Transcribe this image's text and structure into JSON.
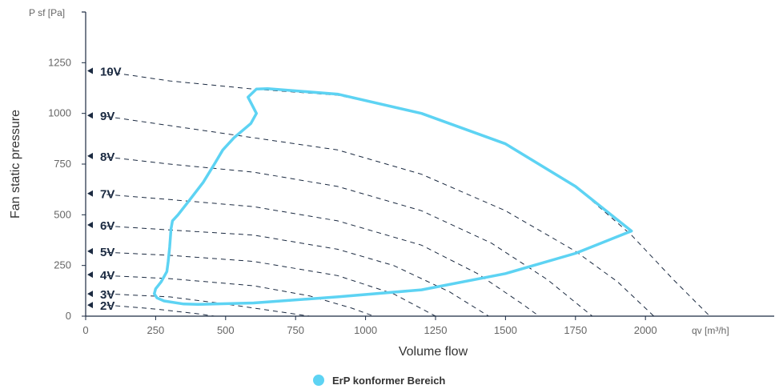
{
  "chart_data": {
    "type": "line",
    "xlabel": "Volume flow",
    "ylabel": "Fan static pressure",
    "x_unit_label": "qv [m³/h]",
    "y_unit_label": "P sf [Pa]",
    "xlim": [
      0,
      2460
    ],
    "ylim": [
      0,
      1500
    ],
    "x_ticks": [
      0,
      250,
      500,
      750,
      1000,
      1250,
      1500,
      1750,
      2000
    ],
    "y_ticks": [
      0,
      250,
      500,
      750,
      1000,
      1250
    ],
    "x_tick_labels": [
      "0",
      "250",
      "500",
      "750",
      "1000",
      "1250",
      "1500",
      "1750",
      "2000"
    ],
    "y_tick_labels": [
      "0",
      "250",
      "500",
      "750",
      "1000",
      "1250"
    ],
    "voltage_curves": [
      {
        "label": "10V",
        "label_y": 1210,
        "points": [
          [
            75,
            1205
          ],
          [
            300,
            1160
          ],
          [
            600,
            1120
          ],
          [
            900,
            1090
          ],
          [
            1200,
            1000
          ],
          [
            1500,
            850
          ],
          [
            1750,
            640
          ],
          [
            1950,
            400
          ],
          [
            2100,
            180
          ],
          [
            2230,
            0
          ]
        ]
      },
      {
        "label": "9V",
        "label_y": 990,
        "points": [
          [
            75,
            985
          ],
          [
            300,
            940
          ],
          [
            600,
            880
          ],
          [
            900,
            820
          ],
          [
            1200,
            700
          ],
          [
            1500,
            520
          ],
          [
            1750,
            320
          ],
          [
            1900,
            170
          ],
          [
            2030,
            0
          ]
        ]
      },
      {
        "label": "8V",
        "label_y": 790,
        "points": [
          [
            75,
            785
          ],
          [
            300,
            750
          ],
          [
            600,
            710
          ],
          [
            900,
            640
          ],
          [
            1200,
            520
          ],
          [
            1450,
            360
          ],
          [
            1650,
            180
          ],
          [
            1810,
            0
          ]
        ]
      },
      {
        "label": "7V",
        "label_y": 605,
        "points": [
          [
            75,
            600
          ],
          [
            300,
            575
          ],
          [
            600,
            540
          ],
          [
            900,
            470
          ],
          [
            1200,
            350
          ],
          [
            1400,
            210
          ],
          [
            1560,
            60
          ],
          [
            1620,
            0
          ]
        ]
      },
      {
        "label": "6V",
        "label_y": 450,
        "points": [
          [
            75,
            445
          ],
          [
            300,
            425
          ],
          [
            600,
            400
          ],
          [
            900,
            330
          ],
          [
            1100,
            250
          ],
          [
            1300,
            120
          ],
          [
            1440,
            0
          ]
        ]
      },
      {
        "label": "5V",
        "label_y": 320,
        "points": [
          [
            75,
            315
          ],
          [
            300,
            300
          ],
          [
            600,
            270
          ],
          [
            900,
            200
          ],
          [
            1100,
            110
          ],
          [
            1250,
            0
          ]
        ]
      },
      {
        "label": "4V",
        "label_y": 205,
        "points": [
          [
            75,
            200
          ],
          [
            300,
            185
          ],
          [
            600,
            150
          ],
          [
            800,
            100
          ],
          [
            950,
            40
          ],
          [
            1030,
            0
          ]
        ]
      },
      {
        "label": "3V",
        "label_y": 110,
        "points": [
          [
            75,
            110
          ],
          [
            300,
            95
          ],
          [
            500,
            60
          ],
          [
            700,
            20
          ],
          [
            800,
            0
          ]
        ]
      },
      {
        "label": "2V",
        "label_y": 55,
        "points": [
          [
            75,
            55
          ],
          [
            250,
            35
          ],
          [
            400,
            12
          ],
          [
            460,
            0
          ]
        ]
      }
    ],
    "series": [
      {
        "name": "ErP konformer Bereich",
        "color": "#5dd3f3",
        "points": [
          [
            610,
            1120
          ],
          [
            650,
            1122
          ],
          [
            900,
            1095
          ],
          [
            1200,
            1000
          ],
          [
            1500,
            850
          ],
          [
            1750,
            640
          ],
          [
            1950,
            420
          ],
          [
            1750,
            310
          ],
          [
            1500,
            210
          ],
          [
            1200,
            130
          ],
          [
            900,
            95
          ],
          [
            600,
            65
          ],
          [
            400,
            58
          ],
          [
            350,
            60
          ],
          [
            280,
            75
          ],
          [
            255,
            90
          ],
          [
            245,
            110
          ],
          [
            250,
            135
          ],
          [
            270,
            170
          ],
          [
            290,
            220
          ],
          [
            295,
            270
          ],
          [
            300,
            340
          ],
          [
            305,
            430
          ],
          [
            310,
            470
          ],
          [
            330,
            500
          ],
          [
            370,
            570
          ],
          [
            420,
            660
          ],
          [
            460,
            750
          ],
          [
            490,
            820
          ],
          [
            530,
            880
          ],
          [
            590,
            950
          ],
          [
            610,
            1000
          ],
          [
            580,
            1080
          ],
          [
            610,
            1120
          ]
        ]
      }
    ],
    "legend": {
      "placement": "bottom-center"
    },
    "grid": false
  }
}
